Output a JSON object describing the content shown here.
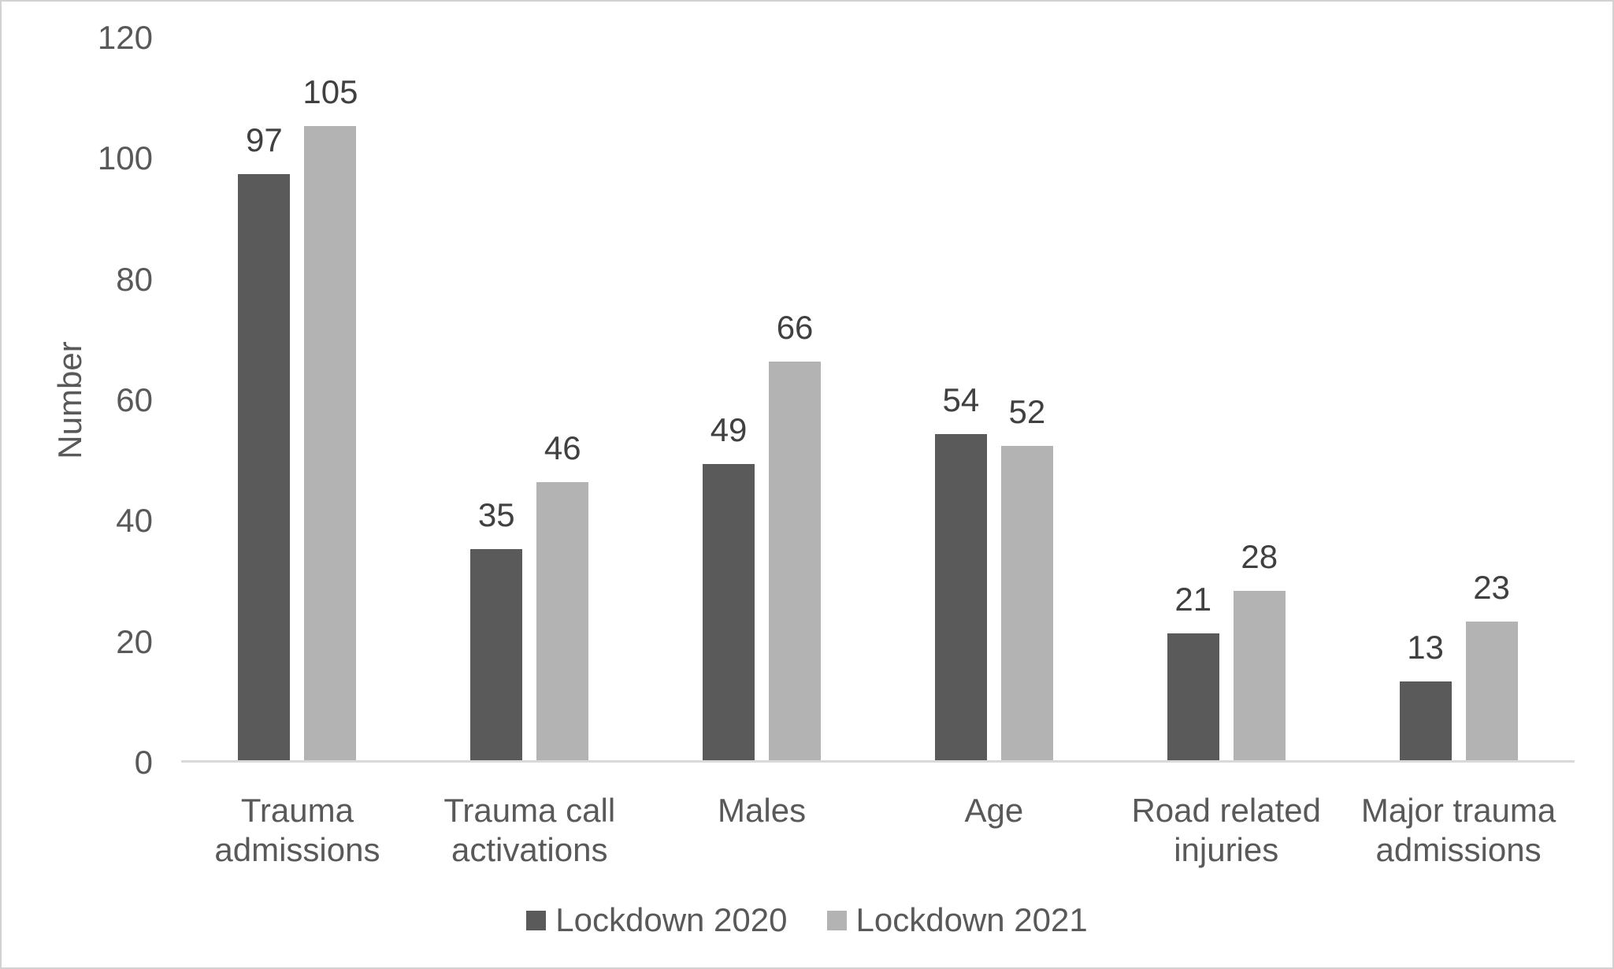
{
  "chart_data": {
    "type": "bar",
    "title": "",
    "categories": [
      "Trauma admissions",
      "Trauma call activations",
      "Males",
      "Age",
      "Road related injuries",
      "Major trauma admissions"
    ],
    "series": [
      {
        "name": "Lockdown 2020",
        "color": "#5a5a5a",
        "values": [
          97,
          35,
          49,
          54,
          21,
          13
        ]
      },
      {
        "name": "Lockdown 2021",
        "color": "#b3b3b3",
        "values": [
          105,
          46,
          66,
          52,
          28,
          23
        ]
      }
    ],
    "xlabel": "",
    "ylabel": "Number",
    "ylim": [
      0,
      120
    ],
    "yticks": [
      0,
      20,
      40,
      60,
      80,
      100,
      120
    ],
    "grid": false,
    "legend_position": "bottom",
    "data_labels": true,
    "axis_line_color": "#d9d9d9",
    "axis_text_color": "#595959",
    "data_label_color": "#404040",
    "background_color": "#ffffff"
  }
}
